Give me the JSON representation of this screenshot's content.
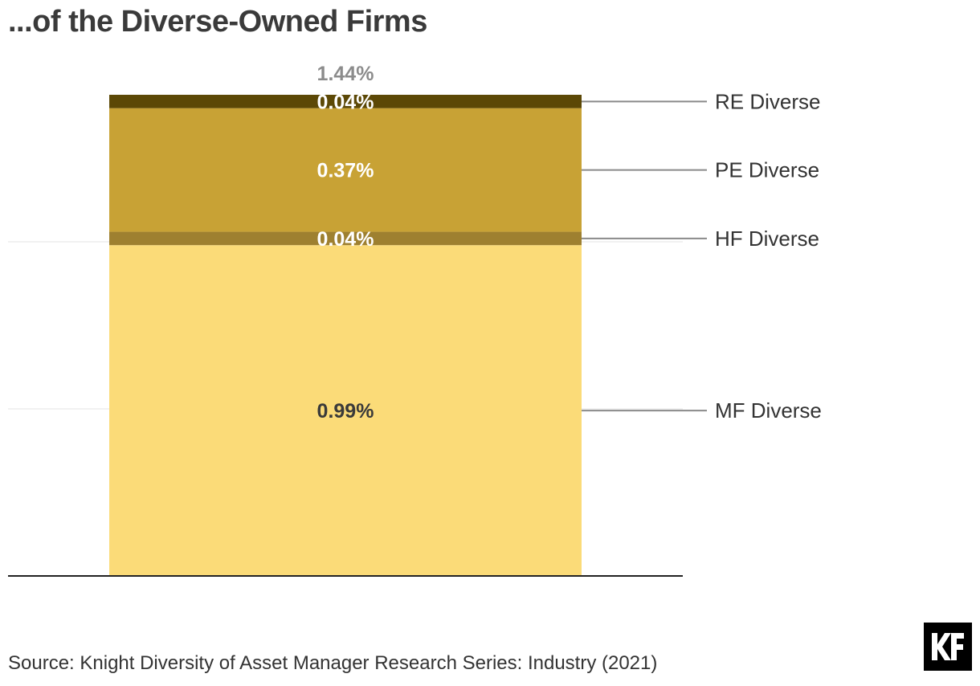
{
  "title": "...of the Diverse-Owned Firms",
  "source": "Source: Knight Diversity of Asset Manager Research Series: Industry (2021)",
  "logo_text": "KF",
  "chart_data": {
    "type": "bar",
    "stacked": true,
    "categories": [
      ""
    ],
    "total_label": "1.44%",
    "total": 1.44,
    "series": [
      {
        "name": "MF Diverse",
        "values": [
          0.99
        ],
        "label": "0.99%",
        "color": "#fbdb78",
        "label_color": "#3a3a3a"
      },
      {
        "name": "HF Diverse",
        "values": [
          0.04
        ],
        "label": "0.04%",
        "color": "#9e8030",
        "label_color": "#ffffff"
      },
      {
        "name": "PE Diverse",
        "values": [
          0.37
        ],
        "label": "0.37%",
        "color": "#c8a235",
        "label_color": "#ffffff"
      },
      {
        "name": "RE Diverse",
        "values": [
          0.04
        ],
        "label": "0.04%",
        "color": "#5c4806",
        "label_color": "#ffffff"
      }
    ],
    "ylim": [
      0,
      1.44
    ],
    "grid": true,
    "legend": "right, leader lines"
  }
}
